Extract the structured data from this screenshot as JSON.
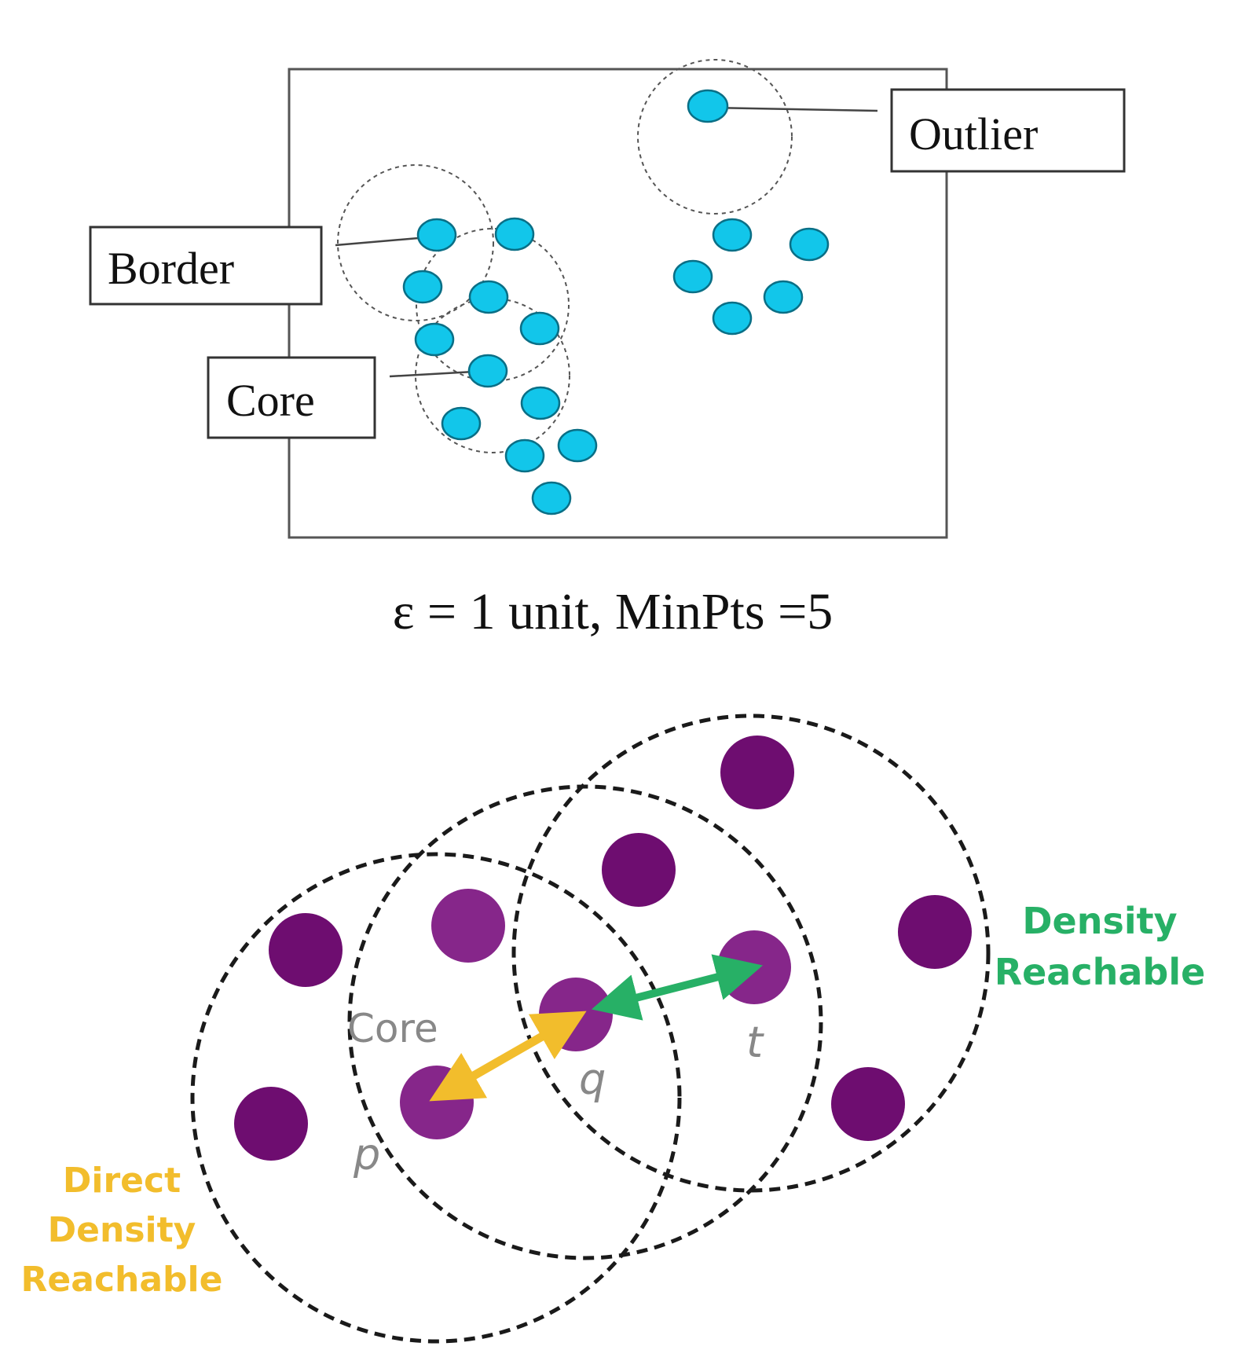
{
  "top_diagram": {
    "labels": {
      "outlier": "Outlier",
      "border": "Border",
      "core": "Core"
    },
    "caption": "ε = 1 unit, MinPts =5",
    "colors": {
      "point": "#12c6ea",
      "point_stroke": "#0a6f86",
      "frame": "#555555",
      "circle": "#555555"
    }
  },
  "bottom_diagram": {
    "labels": {
      "core": "Core",
      "p": "p",
      "q": "q",
      "t": "t",
      "density_reachable_line1": "Density",
      "density_reachable_line2": "Reachable",
      "direct_density_reachable_line1": "Direct",
      "direct_density_reachable_line2": "Density",
      "direct_density_reachable_line3": "Reachable"
    },
    "colors": {
      "point_dark": "#6e0d70",
      "point_mid": "#86268a",
      "green": "#27b066",
      "yellow": "#f2bd2c",
      "label_gray": "#888888",
      "circle": "#1a1a1a"
    }
  }
}
